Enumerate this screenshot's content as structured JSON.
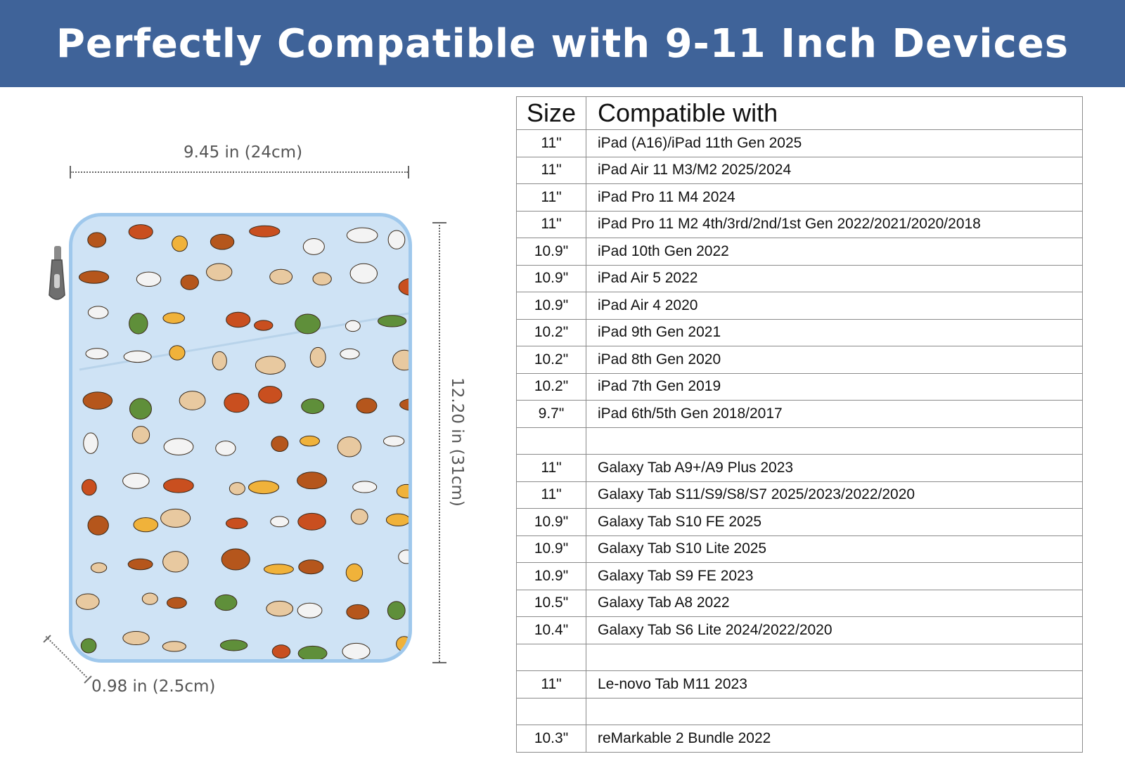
{
  "banner": {
    "title": "Perfectly Compatible with 9-11 Inch Devices"
  },
  "dimensions": {
    "width_label": "9.45 in (24cm)",
    "height_label": "12.20 in (31cm)",
    "depth_label": "0.98 in (2.5cm)"
  },
  "colors": {
    "banner": "#3f6399",
    "case_fill": "#cfe3f5",
    "case_trim": "#9fc8ec"
  },
  "table": {
    "headers": {
      "size": "Size",
      "compatible": "Compatible with"
    },
    "rows": [
      {
        "size": "11\"",
        "device": "iPad (A16)/iPad 11th Gen 2025"
      },
      {
        "size": "11\"",
        "device": "iPad Air 11 M3/M2 2025/2024"
      },
      {
        "size": "11\"",
        "device": "iPad Pro 11 M4 2024"
      },
      {
        "size": "11\"",
        "device": "iPad Pro 11 M2 4th/3rd/2nd/1st Gen 2022/2021/2020/2018"
      },
      {
        "size": "10.9\"",
        "device": "iPad 10th Gen 2022"
      },
      {
        "size": "10.9\"",
        "device": "iPad Air 5 2022"
      },
      {
        "size": "10.9\"",
        "device": "iPad Air 4 2020"
      },
      {
        "size": "10.2\"",
        "device": "iPad 9th Gen 2021"
      },
      {
        "size": "10.2\"",
        "device": "iPad 8th Gen 2020"
      },
      {
        "size": "10.2\"",
        "device": "iPad 7th Gen 2019"
      },
      {
        "size": "9.7\"",
        "device": "iPad 6th/5th Gen 2018/2017"
      },
      {
        "size": "",
        "device": ""
      },
      {
        "size": "11\"",
        "device": "Galaxy Tab A9+/A9 Plus 2023"
      },
      {
        "size": "11\"",
        "device": "Galaxy Tab S11/S9/S8/S7 2025/2023/2022/2020"
      },
      {
        "size": "10.9\"",
        "device": "Galaxy Tab S10 FE 2025"
      },
      {
        "size": "10.9\"",
        "device": "Galaxy Tab S10 Lite 2025"
      },
      {
        "size": "10.9\"",
        "device": "Galaxy Tab S9 FE 2023"
      },
      {
        "size": "10.5\"",
        "device": "Galaxy Tab A8 2022"
      },
      {
        "size": "10.4\"",
        "device": "Galaxy Tab S6 Lite 2024/2022/2020"
      },
      {
        "size": "",
        "device": ""
      },
      {
        "size": "11\"",
        "device": "Le-novo Tab M11 2023"
      },
      {
        "size": "",
        "device": ""
      },
      {
        "size": "10.3\"",
        "device": "reMarkable 2 Bundle 2022"
      }
    ]
  }
}
